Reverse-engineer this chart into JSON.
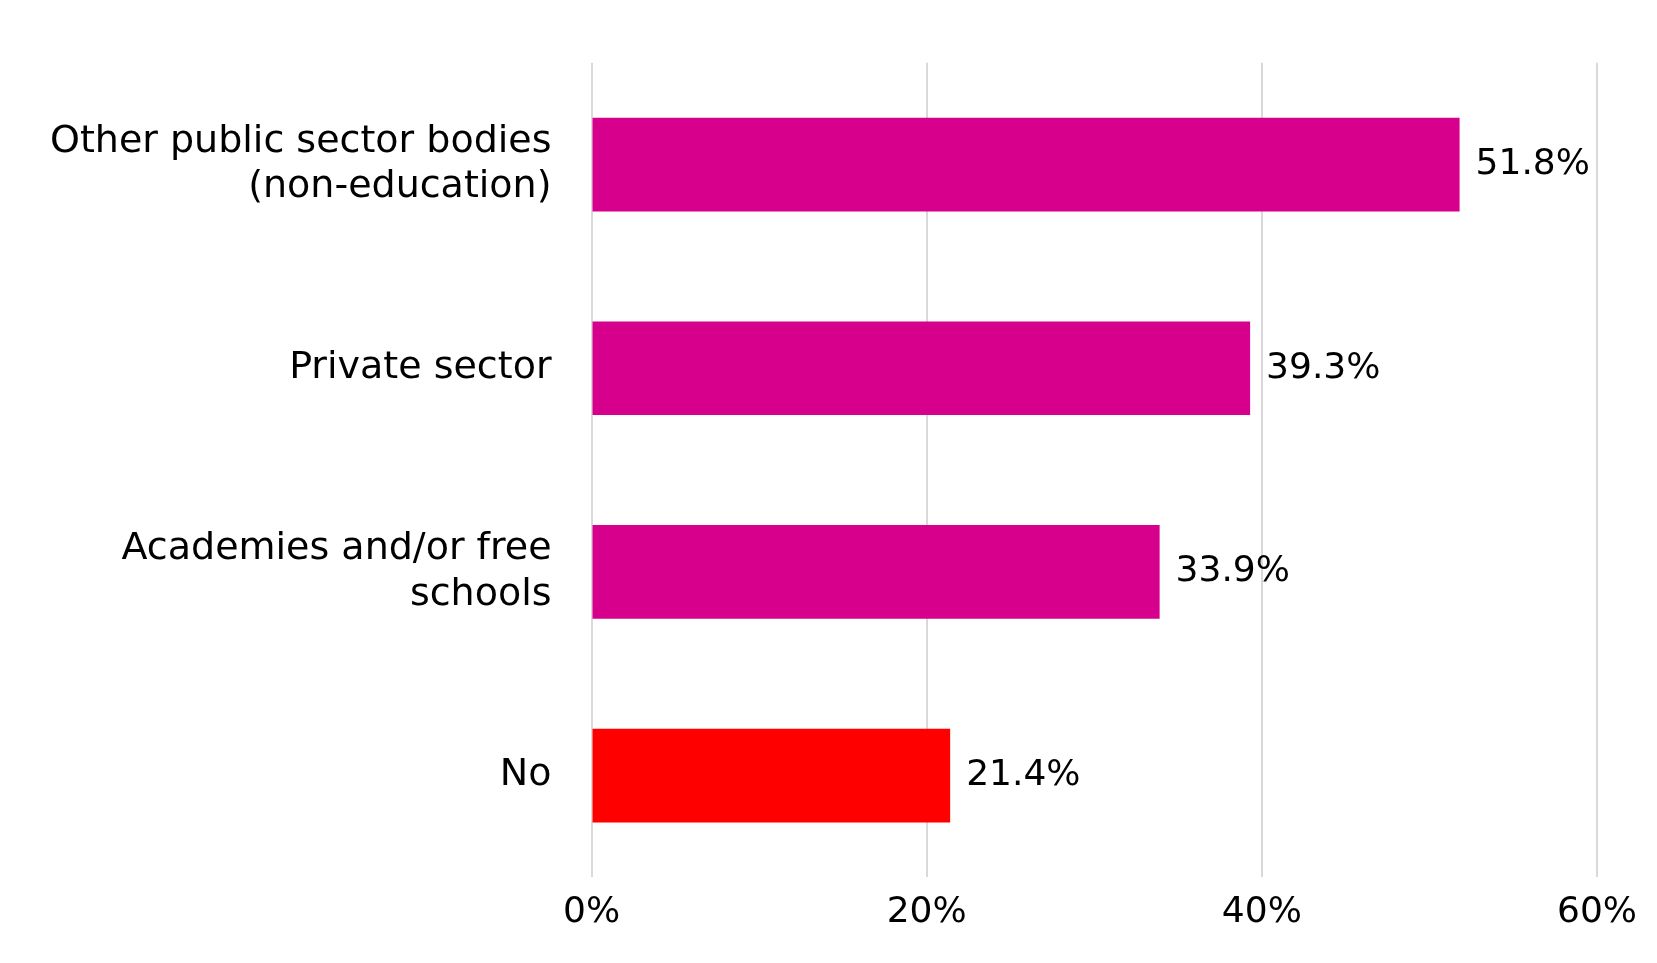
{
  "chart_data": {
    "type": "bar",
    "orientation": "horizontal",
    "categories": [
      "Other public sector bodies (non-education)",
      "Private sector",
      "Academies and/or free schools",
      "No"
    ],
    "values": [
      51.8,
      39.3,
      33.9,
      21.4
    ],
    "colors": [
      "#d6008c",
      "#d6008c",
      "#d6008c",
      "#ff0000"
    ],
    "value_labels": [
      "51.8%",
      "39.3%",
      "33.9%",
      "21.4%"
    ],
    "xlim": [
      0,
      60
    ],
    "xticks": [
      {
        "value": 0,
        "label": "0%"
      },
      {
        "value": 20,
        "label": "20%"
      },
      {
        "value": 40,
        "label": "40%"
      },
      {
        "value": 60,
        "label": "60%"
      }
    ],
    "grid": "x",
    "legend": false
  }
}
